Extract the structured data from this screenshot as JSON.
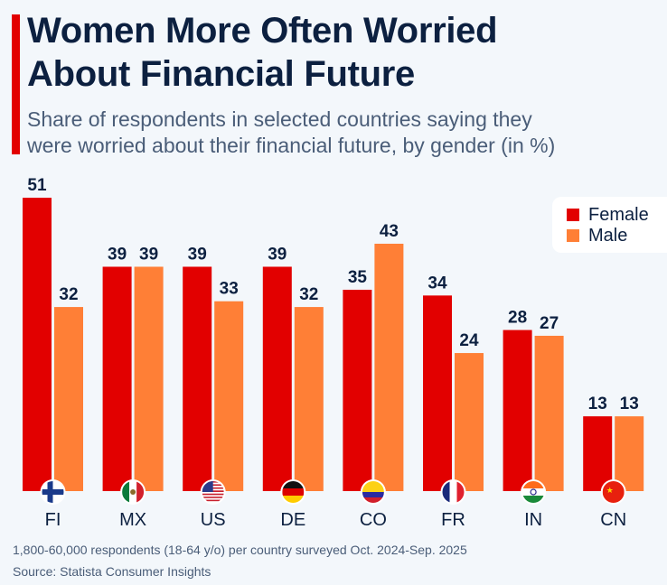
{
  "header": {
    "title_line1": "Women More Often Worried",
    "title_line2": "About Financial Future",
    "subtitle_line1": "Share of respondents in selected countries saying they",
    "subtitle_line2": "were worried about their financial future, by gender (in %)"
  },
  "colors": {
    "accent": "#e20000",
    "female": "#e20000",
    "male": "#ff7f36",
    "label_text": "#0c2040"
  },
  "legend": [
    {
      "name": "Female",
      "color": "#e20000"
    },
    {
      "name": "Male",
      "color": "#ff7f36"
    }
  ],
  "footer": {
    "note": "1,800-60,000 respondents (18-64 y/o) per country surveyed Oct. 2024-Sep. 2025",
    "source": "Source: Statista Consumer Insights"
  },
  "chart_data": {
    "type": "bar",
    "title": "Women More Often Worried About Financial Future",
    "subtitle": "Share of respondents in selected countries saying they were worried about their financial future, by gender (in %)",
    "xlabel": "",
    "ylabel": "",
    "ylim": [
      0,
      51
    ],
    "grid": false,
    "legend_position": "top-right",
    "categories": [
      "FI",
      "MX",
      "US",
      "DE",
      "CO",
      "FR",
      "IN",
      "CN"
    ],
    "flag_icons": [
      "finland-flag-icon",
      "mexico-flag-icon",
      "usa-flag-icon",
      "germany-flag-icon",
      "colombia-flag-icon",
      "france-flag-icon",
      "india-flag-icon",
      "china-flag-icon"
    ],
    "series": [
      {
        "name": "Female",
        "values": [
          51,
          39,
          39,
          39,
          35,
          34,
          28,
          13
        ]
      },
      {
        "name": "Male",
        "values": [
          32,
          39,
          33,
          32,
          43,
          24,
          27,
          13
        ]
      }
    ]
  }
}
